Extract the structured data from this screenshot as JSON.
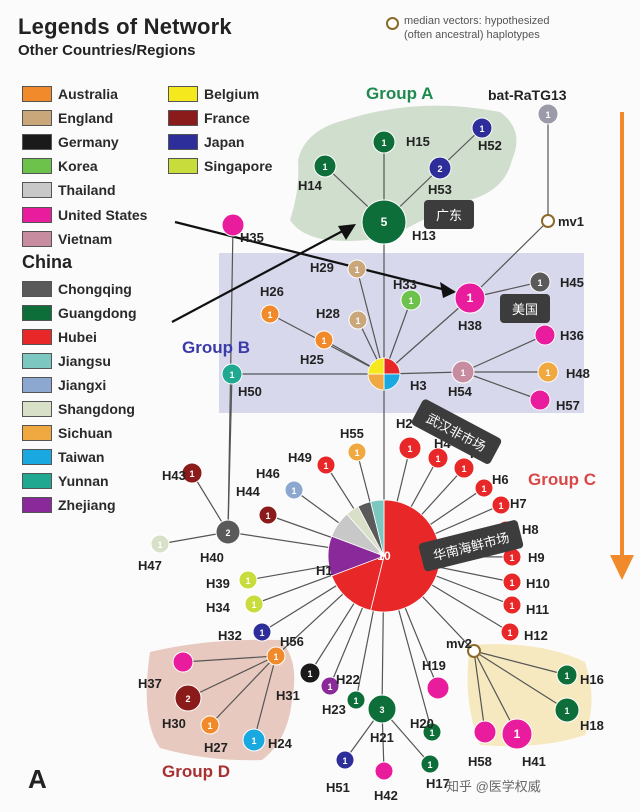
{
  "legend": {
    "title": "Legends of Network",
    "subtitle": "Other Countries/Regions",
    "china_title": "China",
    "countries": [
      {
        "label": "Australia",
        "color": "#f08a2a"
      },
      {
        "label": "Belgium",
        "color": "#f5e81c"
      },
      {
        "label": "England",
        "color": "#c9a77a"
      },
      {
        "label": "France",
        "color": "#8b1a1a"
      },
      {
        "label": "Germany",
        "color": "#1a1a1a"
      },
      {
        "label": "Japan",
        "color": "#2e2e9a"
      },
      {
        "label": "Korea",
        "color": "#6cc24a"
      },
      {
        "label": "Singapore",
        "color": "#c8dc3c"
      },
      {
        "label": "Thailand",
        "color": "#c8c8c8"
      },
      {
        "label": "United States",
        "color": "#e81c9c"
      },
      {
        "label": "Vietnam",
        "color": "#c88ca0"
      }
    ],
    "china": [
      {
        "label": "Chongqing",
        "color": "#5a5a5a"
      },
      {
        "label": "Guangdong",
        "color": "#0e6e3a"
      },
      {
        "label": "Hubei",
        "color": "#e82828"
      },
      {
        "label": "Jiangsu",
        "color": "#7cc8c0"
      },
      {
        "label": "Jiangxi",
        "color": "#8ca8d0"
      },
      {
        "label": "Shangdong",
        "color": "#d8e0c8"
      },
      {
        "label": "Sichuan",
        "color": "#f0a840"
      },
      {
        "label": "Taiwan",
        "color": "#1aa8e0"
      },
      {
        "label": "Yunnan",
        "color": "#20a890"
      },
      {
        "label": "Zhejiang",
        "color": "#8a2a9a"
      }
    ]
  },
  "median_note": {
    "line1": "median vectors: hypothesized",
    "line2": "(often ancestral) haplotypes"
  },
  "groups": {
    "a": "Group A",
    "b": "Group B",
    "c": "Group C",
    "d": "Group D"
  },
  "panel_label": "A",
  "annotations": {
    "guangdong": "广东",
    "usa": "美国",
    "wuhan_non_market": "武汉非市场",
    "huanan_market": "华南海鲜市场"
  },
  "watermark": "知乎 @医学权威",
  "nodes": [
    {
      "id": "H1",
      "label": "H1",
      "count": "10",
      "color": "#e82828"
    },
    {
      "id": "H3",
      "label": "H3",
      "count": "",
      "color": "#e82828"
    },
    {
      "id": "H13",
      "label": "H13",
      "count": "5",
      "color": "#0e6e3a"
    },
    {
      "id": "H15",
      "label": "H15",
      "count": "1",
      "color": "#0e6e3a"
    },
    {
      "id": "H14",
      "label": "H14",
      "count": "1",
      "color": "#0e6e3a"
    },
    {
      "id": "H52",
      "label": "H52",
      "count": "1",
      "color": "#2e2e9a"
    },
    {
      "id": "H53",
      "label": "H53",
      "count": "2",
      "color": "#2e2e9a"
    },
    {
      "id": "bat",
      "label": "bat-RaTG13",
      "count": "1",
      "color": "#9a9aa8"
    },
    {
      "id": "H35",
      "label": "H35",
      "count": "",
      "color": "#e81c9c"
    },
    {
      "id": "H38",
      "label": "H38",
      "count": "1",
      "color": "#e81c9c"
    },
    {
      "id": "H45",
      "label": "H45",
      "count": "1",
      "color": "#5a5a5a"
    },
    {
      "id": "H36",
      "label": "H36",
      "count": "",
      "color": "#e81c9c"
    },
    {
      "id": "H48",
      "label": "H48",
      "count": "1",
      "color": "#f0a840"
    },
    {
      "id": "H57",
      "label": "H57",
      "count": "",
      "color": "#e81c9c"
    },
    {
      "id": "H54",
      "label": "H54",
      "count": "1",
      "color": "#c88ca0"
    },
    {
      "id": "H29",
      "label": "H29",
      "count": "1",
      "color": "#c9a77a"
    },
    {
      "id": "H33",
      "label": "H33",
      "count": "1",
      "color": "#6cc24a"
    },
    {
      "id": "H26",
      "label": "H26",
      "count": "1",
      "color": "#f08a2a"
    },
    {
      "id": "H28",
      "label": "H28",
      "count": "1",
      "color": "#c9a77a"
    },
    {
      "id": "H25",
      "label": "H25",
      "count": "1",
      "color": "#f08a2a"
    },
    {
      "id": "H50",
      "label": "H50",
      "count": "1",
      "color": "#20a890"
    },
    {
      "id": "H55",
      "label": "H55",
      "count": "1",
      "color": "#f0a840"
    },
    {
      "id": "H2",
      "label": "H2",
      "count": "1",
      "color": "#e82828"
    },
    {
      "id": "H4",
      "label": "H4",
      "count": "1",
      "color": "#e82828"
    },
    {
      "id": "H5",
      "label": "H5",
      "count": "1",
      "color": "#e82828"
    },
    {
      "id": "H49",
      "label": "H49",
      "count": "1",
      "color": "#e82828"
    },
    {
      "id": "H6",
      "label": "H6",
      "count": "1",
      "color": "#e82828"
    },
    {
      "id": "H46",
      "label": "H46",
      "count": "1",
      "color": "#8ca8d0"
    },
    {
      "id": "H7",
      "label": "H7",
      "count": "1",
      "color": "#e82828"
    },
    {
      "id": "H44",
      "label": "H44",
      "count": "1",
      "color": "#8b1a1a"
    },
    {
      "id": "H43",
      "label": "H43",
      "count": "1",
      "color": "#8b1a1a"
    },
    {
      "id": "H8",
      "label": "H8",
      "count": "1",
      "color": "#e82828"
    },
    {
      "id": "H9",
      "label": "H9",
      "count": "1",
      "color": "#e82828"
    },
    {
      "id": "H40",
      "label": "H40",
      "count": "2",
      "color": "#5a5a5a"
    },
    {
      "id": "H47",
      "label": "H47",
      "count": "1",
      "color": "#d8e0c8"
    },
    {
      "id": "H10",
      "label": "H10",
      "count": "1",
      "color": "#e82828"
    },
    {
      "id": "H39",
      "label": "H39",
      "count": "1",
      "color": "#c8dc3c"
    },
    {
      "id": "H11",
      "label": "H11",
      "count": "1",
      "color": "#e82828"
    },
    {
      "id": "H34",
      "label": "H34",
      "count": "1",
      "color": "#c8dc3c"
    },
    {
      "id": "H12",
      "label": "H12",
      "count": "1",
      "color": "#e82828"
    },
    {
      "id": "H32",
      "label": "H32",
      "count": "1",
      "color": "#2e2e9a"
    },
    {
      "id": "H56",
      "label": "H56",
      "count": "1",
      "color": "#f08a2a"
    },
    {
      "id": "H37",
      "label": "H37",
      "count": "",
      "color": "#e81c9c"
    },
    {
      "id": "H30",
      "label": "H30",
      "count": "2",
      "color": "#8b1a1a"
    },
    {
      "id": "H27",
      "label": "H27",
      "count": "1",
      "color": "#f08a2a"
    },
    {
      "id": "H24",
      "label": "H24",
      "count": "1",
      "color": "#1aa8e0"
    },
    {
      "id": "H31",
      "label": "H31",
      "count": "1",
      "color": "#1a1a1a"
    },
    {
      "id": "H22",
      "label": "H22",
      "count": "1",
      "color": "#8a2a9a"
    },
    {
      "id": "H23",
      "label": "H23",
      "count": "1",
      "color": "#0e6e3a"
    },
    {
      "id": "H19",
      "label": "H19",
      "count": "",
      "color": "#e81c9c"
    },
    {
      "id": "H21",
      "label": "H21",
      "count": "3",
      "color": "#0e6e3a"
    },
    {
      "id": "H20",
      "label": "H20",
      "count": "1",
      "color": "#0e6e3a"
    },
    {
      "id": "H16",
      "label": "H16",
      "count": "1",
      "color": "#0e6e3a"
    },
    {
      "id": "H18",
      "label": "H18",
      "count": "1",
      "color": "#0e6e3a"
    },
    {
      "id": "H58",
      "label": "H58",
      "count": "",
      "color": "#e81c9c"
    },
    {
      "id": "H41",
      "label": "H41",
      "count": "1",
      "color": "#e81c9c"
    },
    {
      "id": "H51",
      "label": "H51",
      "count": "1",
      "color": "#2e2e9a"
    },
    {
      "id": "H42",
      "label": "H42",
      "count": "",
      "color": "#e81c9c"
    },
    {
      "id": "H17",
      "label": "H17",
      "count": "1",
      "color": "#0e6e3a"
    },
    {
      "id": "mv1",
      "label": "mv1",
      "count": "",
      "color": "#ffffff"
    },
    {
      "id": "mv2",
      "label": "mv2",
      "count": "",
      "color": "#ffffff"
    }
  ]
}
